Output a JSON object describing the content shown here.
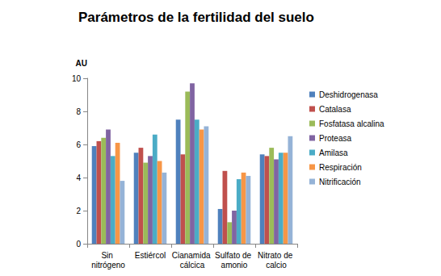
{
  "chart_data": {
    "type": "bar",
    "title": "Parámetros de la fertilidad del suelo",
    "y_label": "AU",
    "categories": [
      "Sin nitrógeno",
      "Estiércol",
      "Cianamida cálcica",
      "Sulfato de amonio",
      "Nitrato de calcio"
    ],
    "series": [
      {
        "name": "Deshidrogenasa",
        "color": "#4f81bd",
        "values": [
          5.9,
          5.5,
          7.5,
          2.1,
          5.4
        ]
      },
      {
        "name": "Catalasa",
        "color": "#c0504d",
        "values": [
          6.2,
          5.8,
          5.4,
          4.4,
          5.3
        ]
      },
      {
        "name": "Fosfatasa alcalina",
        "color": "#9bbb59",
        "values": [
          6.4,
          4.9,
          9.2,
          1.3,
          5.8
        ]
      },
      {
        "name": "Proteasa",
        "color": "#8064a2",
        "values": [
          6.9,
          5.3,
          9.7,
          2.0,
          5.1
        ]
      },
      {
        "name": "Amilasa",
        "color": "#4bacc6",
        "values": [
          5.3,
          6.6,
          7.5,
          3.9,
          5.5
        ]
      },
      {
        "name": "Respiración",
        "color": "#f79646",
        "values": [
          6.1,
          5.0,
          6.9,
          4.3,
          5.5
        ]
      },
      {
        "name": "Nitrificación",
        "color": "#95b3d7",
        "values": [
          3.8,
          4.3,
          7.1,
          4.1,
          6.5
        ]
      }
    ],
    "ylim": [
      0,
      10
    ],
    "yticks": [
      0,
      2,
      4,
      6,
      8,
      10
    ],
    "grid": false,
    "legend": "right"
  }
}
